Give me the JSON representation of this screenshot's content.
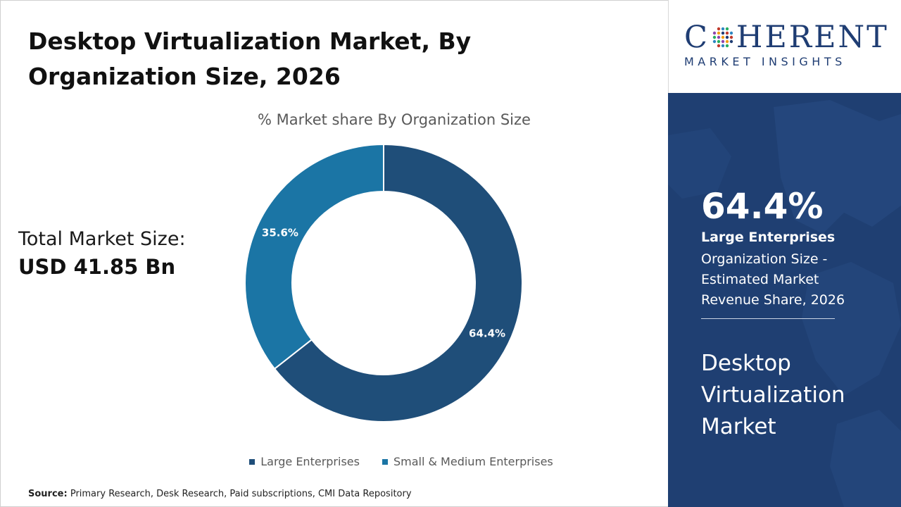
{
  "header": {
    "title": "Desktop Virtualization Market, By Organization Size, 2026"
  },
  "market_size": {
    "label": "Total Market Size:",
    "value": "USD 41.85 Bn"
  },
  "chart_data": {
    "type": "pie",
    "subtype": "donut",
    "title": "% Market share By Organization Size",
    "categories": [
      "Large Enterprises",
      "Small & Medium Enterprises"
    ],
    "values": [
      64.4,
      35.6
    ],
    "data_labels": [
      "64.4%",
      "35.6%"
    ],
    "colors": [
      "#1f4e79",
      "#1b75a5"
    ],
    "legend_position": "bottom"
  },
  "source": {
    "label": "Source:",
    "text": "Primary Research, Desk Research, Paid subscriptions, CMI Data Repository"
  },
  "brand": {
    "name_pre": "C",
    "name_post": "HERENT",
    "tagline": "MARKET INSIGHTS",
    "color": "#1f3d73"
  },
  "highlight": {
    "value": "64.4%",
    "segment": "Large Enterprises",
    "description": "Organization Size - Estimated Market Revenue Share, 2026",
    "market_name": "Desktop Virtualization Market",
    "panel_color": "#1f3f72"
  }
}
